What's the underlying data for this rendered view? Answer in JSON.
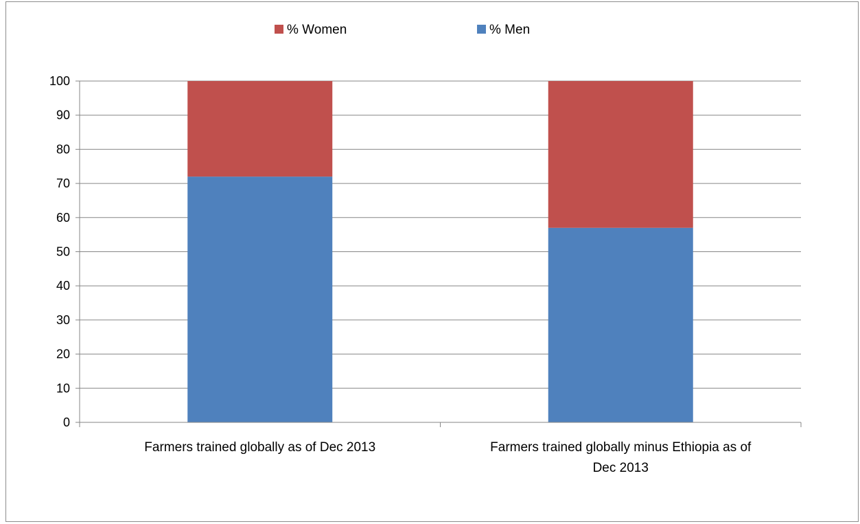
{
  "chart_data": {
    "type": "bar",
    "stacked": true,
    "categories": [
      [
        "Farmers trained globally as of Dec 2013"
      ],
      [
        "Farmers trained globally minus Ethiopia as of",
        "Dec 2013"
      ]
    ],
    "series": [
      {
        "name": "% Men",
        "values": [
          72,
          57
        ],
        "color": "#4f81bd"
      },
      {
        "name": "% Women",
        "values": [
          28,
          43
        ],
        "color": "#c0504d"
      }
    ],
    "legend_order": [
      "% Women",
      "% Men"
    ],
    "legend_position": "top",
    "ylim": [
      0,
      100
    ],
    "yticks": [
      "0",
      "10",
      "20",
      "30",
      "40",
      "50",
      "60",
      "70",
      "80",
      "90",
      "100"
    ],
    "grid": true,
    "gridline_color": "#868686"
  }
}
